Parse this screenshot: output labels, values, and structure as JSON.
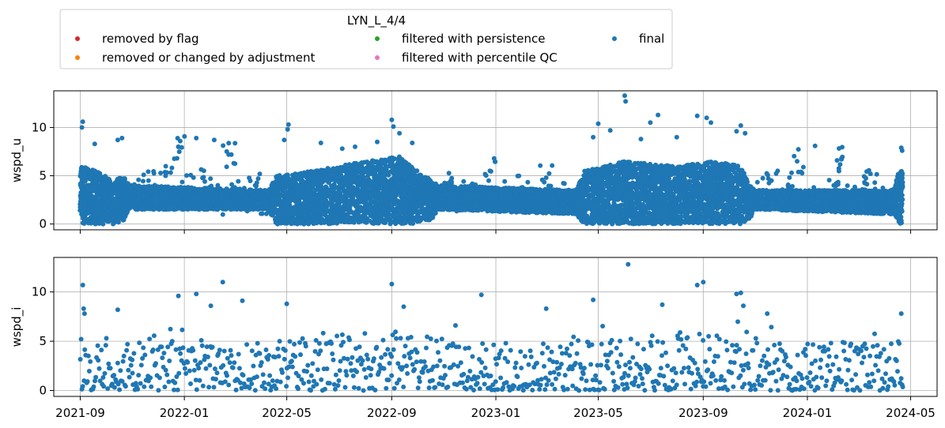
{
  "chart_data": {
    "type": "scatter",
    "legend": {
      "title": "LYN_L_4/4",
      "placement": "top-left, above plots",
      "entries": [
        {
          "label": "removed by flag",
          "color": "#d62728"
        },
        {
          "label": "removed or changed by adjustment",
          "color": "#ff7f0e"
        },
        {
          "label": "filtered with persistence",
          "color": "#2ca02c"
        },
        {
          "label": "filtered with percentile QC",
          "color": "#e377c2"
        },
        {
          "label": "final",
          "color": "#1f77b4"
        }
      ]
    },
    "x_axis": {
      "type": "date",
      "range": [
        "2021-08-01",
        "2024-06-01"
      ],
      "tick_labels": [
        "2021-09",
        "2022-01",
        "2022-05",
        "2022-09",
        "2023-01",
        "2023-05",
        "2023-09",
        "2024-01",
        "2024-05"
      ]
    },
    "grid": true,
    "panels": [
      {
        "ylabel": "wspd_u",
        "ylim": [
          -0.6,
          13.8
        ],
        "yticks": [
          0,
          5,
          10
        ],
        "series": [
          {
            "name": "final",
            "color": "#1f77b4",
            "style": "dense",
            "envelope": [
              [
                "2021-09-01",
                0.0,
                6.0
              ],
              [
                "2021-09-20",
                0.0,
                5.5
              ],
              [
                "2021-10-10",
                0.0,
                4.5
              ],
              [
                "2021-10-22",
                0.3,
                5.0
              ],
              [
                "2021-10-28",
                1.5,
                4.0
              ],
              [
                "2022-04-10",
                1.5,
                3.5
              ],
              [
                "2022-04-18",
                0.0,
                5.0
              ],
              [
                "2022-06-01",
                0.0,
                5.5
              ],
              [
                "2022-08-01",
                0.0,
                6.5
              ],
              [
                "2022-09-10",
                0.0,
                7.0
              ],
              [
                "2022-10-01",
                0.0,
                5.5
              ],
              [
                "2022-10-18",
                0.5,
                4.5
              ],
              [
                "2022-10-25",
                1.5,
                4.0
              ],
              [
                "2023-04-05",
                1.0,
                3.5
              ],
              [
                "2023-04-15",
                0.0,
                5.5
              ],
              [
                "2023-06-01",
                0.0,
                6.5
              ],
              [
                "2023-08-01",
                0.0,
                6.0
              ],
              [
                "2023-09-15",
                0.0,
                6.5
              ],
              [
                "2023-10-15",
                0.0,
                6.0
              ],
              [
                "2023-10-25",
                0.5,
                4.0
              ],
              [
                "2023-11-01",
                1.5,
                3.5
              ],
              [
                "2024-04-12",
                1.0,
                3.5
              ],
              [
                "2024-04-18",
                0.0,
                6.0
              ],
              [
                "2024-04-22",
                0.0,
                5.5
              ]
            ],
            "sparse": [
              [
                "2021-11-01",
                3.5
              ],
              [
                "2021-11-10",
                2.8
              ],
              [
                "2021-11-20",
                4.5
              ],
              [
                "2021-12-01",
                3.0
              ],
              [
                "2021-12-10",
                5.0
              ],
              [
                "2021-12-20",
                2.5
              ],
              [
                "2021-12-25",
                8.0
              ],
              [
                "2022-01-05",
                3.8
              ],
              [
                "2022-01-15",
                2.6
              ],
              [
                "2022-01-25",
                4.4
              ],
              [
                "2022-02-05",
                3.1
              ],
              [
                "2022-02-15",
                2.2
              ],
              [
                "2022-02-22",
                7.2
              ],
              [
                "2022-03-05",
                3.6
              ],
              [
                "2022-03-15",
                2.5
              ],
              [
                "2022-03-25",
                4.0
              ],
              [
                "2022-04-05",
                2.3
              ],
              [
                "2022-11-01",
                3.0
              ],
              [
                "2022-11-10",
                4.2
              ],
              [
                "2022-11-20",
                2.4
              ],
              [
                "2022-12-01",
                3.6
              ],
              [
                "2022-12-10",
                2.8
              ],
              [
                "2022-12-25",
                5.5
              ],
              [
                "2023-01-05",
                3.2
              ],
              [
                "2023-01-20",
                2.5
              ],
              [
                "2023-02-01",
                3.8
              ],
              [
                "2023-02-15",
                2.7
              ],
              [
                "2023-03-01",
                4.8
              ],
              [
                "2023-03-15",
                3.0
              ],
              [
                "2023-03-25",
                2.4
              ],
              [
                "2023-11-10",
                3.5
              ],
              [
                "2023-11-20",
                4.5
              ],
              [
                "2023-12-01",
                2.5
              ],
              [
                "2023-12-10",
                3.8
              ],
              [
                "2023-12-20",
                6.5
              ],
              [
                "2024-01-05",
                3.3
              ],
              [
                "2024-01-15",
                2.2
              ],
              [
                "2024-02-01",
                4.0
              ],
              [
                "2024-02-10",
                6.7
              ],
              [
                "2024-02-20",
                2.9
              ],
              [
                "2024-03-05",
                3.4
              ],
              [
                "2024-03-15",
                5.2
              ],
              [
                "2024-03-25",
                2.6
              ],
              [
                "2024-04-05",
                3.1
              ]
            ],
            "outliers": [
              [
                "2021-09-04",
                10.6
              ],
              [
                "2021-09-03",
                10.0
              ],
              [
                "2021-09-18",
                8.3
              ],
              [
                "2021-10-15",
                8.7
              ],
              [
                "2021-10-20",
                8.9
              ],
              [
                "2021-12-25",
                8.0
              ],
              [
                "2022-01-15",
                8.9
              ],
              [
                "2022-02-05",
                8.7
              ],
              [
                "2022-02-25",
                7.2
              ],
              [
                "2022-05-03",
                10.3
              ],
              [
                "2022-05-02",
                9.8
              ],
              [
                "2022-04-28",
                8.7
              ],
              [
                "2022-06-10",
                8.4
              ],
              [
                "2022-07-05",
                7.8
              ],
              [
                "2022-07-20",
                8.0
              ],
              [
                "2022-08-15",
                8.5
              ],
              [
                "2022-09-01",
                10.8
              ],
              [
                "2022-09-03",
                10.1
              ],
              [
                "2022-09-10",
                9.4
              ],
              [
                "2022-09-25",
                8.4
              ],
              [
                "2023-04-25",
                9.0
              ],
              [
                "2023-05-01",
                10.4
              ],
              [
                "2023-05-15",
                9.7
              ],
              [
                "2023-06-01",
                13.3
              ],
              [
                "2023-06-02",
                12.7
              ],
              [
                "2023-06-20",
                8.8
              ],
              [
                "2023-07-01",
                10.5
              ],
              [
                "2023-07-10",
                11.3
              ],
              [
                "2023-08-01",
                9.0
              ],
              [
                "2023-08-25",
                11.2
              ],
              [
                "2023-09-05",
                11.0
              ],
              [
                "2023-09-10",
                10.5
              ],
              [
                "2023-10-10",
                9.6
              ],
              [
                "2023-10-15",
                10.2
              ],
              [
                "2023-10-20",
                9.4
              ],
              [
                "2024-01-10",
                8.1
              ],
              [
                "2024-02-10",
                6.8
              ],
              [
                "2024-04-20",
                7.9
              ],
              [
                "2024-04-21",
                7.6
              ]
            ]
          }
        ]
      },
      {
        "ylabel": "wspd_i",
        "ylim": [
          -0.6,
          13.5
        ],
        "yticks": [
          0,
          5,
          10
        ],
        "series": [
          {
            "name": "final",
            "color": "#1f77b4",
            "style": "sparse-dense",
            "envelope": [
              [
                "2021-09-01",
                0.0,
                5.0
              ],
              [
                "2021-11-01",
                0.0,
                5.0
              ],
              [
                "2022-04-10",
                0.0,
                5.0
              ],
              [
                "2022-06-01",
                0.0,
                5.5
              ],
              [
                "2022-09-01",
                0.0,
                6.0
              ],
              [
                "2022-10-20",
                0.0,
                5.5
              ],
              [
                "2023-01-01",
                0.0,
                5.0
              ],
              [
                "2023-04-01",
                0.0,
                5.0
              ],
              [
                "2023-06-01",
                0.0,
                6.0
              ],
              [
                "2023-09-01",
                0.0,
                6.0
              ],
              [
                "2023-10-20",
                0.0,
                5.5
              ],
              [
                "2024-01-01",
                0.0,
                5.0
              ],
              [
                "2024-04-22",
                0.0,
                5.0
              ]
            ],
            "sparse": [],
            "outliers": [
              [
                "2021-09-04",
                10.7
              ],
              [
                "2021-09-05",
                8.3
              ],
              [
                "2021-09-06",
                7.8
              ],
              [
                "2021-10-15",
                8.2
              ],
              [
                "2021-12-25",
                9.6
              ],
              [
                "2022-01-15",
                9.8
              ],
              [
                "2022-02-01",
                8.6
              ],
              [
                "2022-02-15",
                11.0
              ],
              [
                "2022-03-10",
                9.1
              ],
              [
                "2022-05-01",
                8.8
              ],
              [
                "2022-09-01",
                10.8
              ],
              [
                "2022-09-15",
                8.5
              ],
              [
                "2022-12-15",
                9.7
              ],
              [
                "2023-03-01",
                8.3
              ],
              [
                "2023-04-25",
                9.2
              ],
              [
                "2023-06-05",
                12.8
              ],
              [
                "2023-07-15",
                8.7
              ],
              [
                "2023-08-25",
                10.7
              ],
              [
                "2023-09-01",
                11.0
              ],
              [
                "2023-10-10",
                9.8
              ],
              [
                "2023-10-15",
                9.9
              ],
              [
                "2023-10-18",
                8.6
              ],
              [
                "2023-11-15",
                7.8
              ],
              [
                "2024-04-20",
                7.8
              ]
            ]
          }
        ]
      }
    ]
  }
}
